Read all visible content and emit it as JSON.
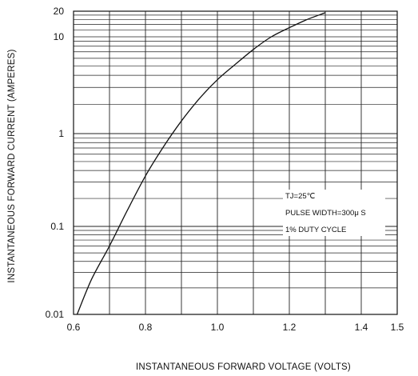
{
  "chart_data": {
    "type": "line",
    "xlabel": "INSTANTANEOUS  FORWARD  VOLTAGE  (VOLTS)",
    "ylabel": "INSTANTANEOUS  FORWARD  CURRENT (AMPERES)",
    "xlim": [
      0.6,
      1.5
    ],
    "ylim": [
      0.01,
      20
    ],
    "y_scale": "log",
    "grid": true,
    "x_ticks": [
      "0.6",
      "0.8",
      "1.0",
      "1.2",
      "1.4",
      "1.5"
    ],
    "x_tick_values": [
      0.6,
      0.8,
      1.0,
      1.2,
      1.4,
      1.5
    ],
    "y_ticks": [
      "0.01",
      "0.1",
      "1",
      "10",
      "20"
    ],
    "y_tick_values": [
      0.01,
      0.1,
      1,
      10,
      20
    ],
    "annotations": [
      "TJ=25℃",
      "PULSE WIDTH=300μ  S",
      "1% DUTY CYCLE"
    ],
    "series": [
      {
        "x": [
          0.61,
          0.65,
          0.7,
          0.75,
          0.8,
          0.85,
          0.9,
          0.95,
          1.0,
          1.05,
          1.1,
          1.15,
          1.2,
          1.25,
          1.3
        ],
        "y": [
          0.01,
          0.025,
          0.06,
          0.15,
          0.35,
          0.72,
          1.35,
          2.3,
          3.6,
          5.2,
          7.4,
          10.0,
          12.8,
          16.0,
          19.2
        ]
      }
    ]
  }
}
